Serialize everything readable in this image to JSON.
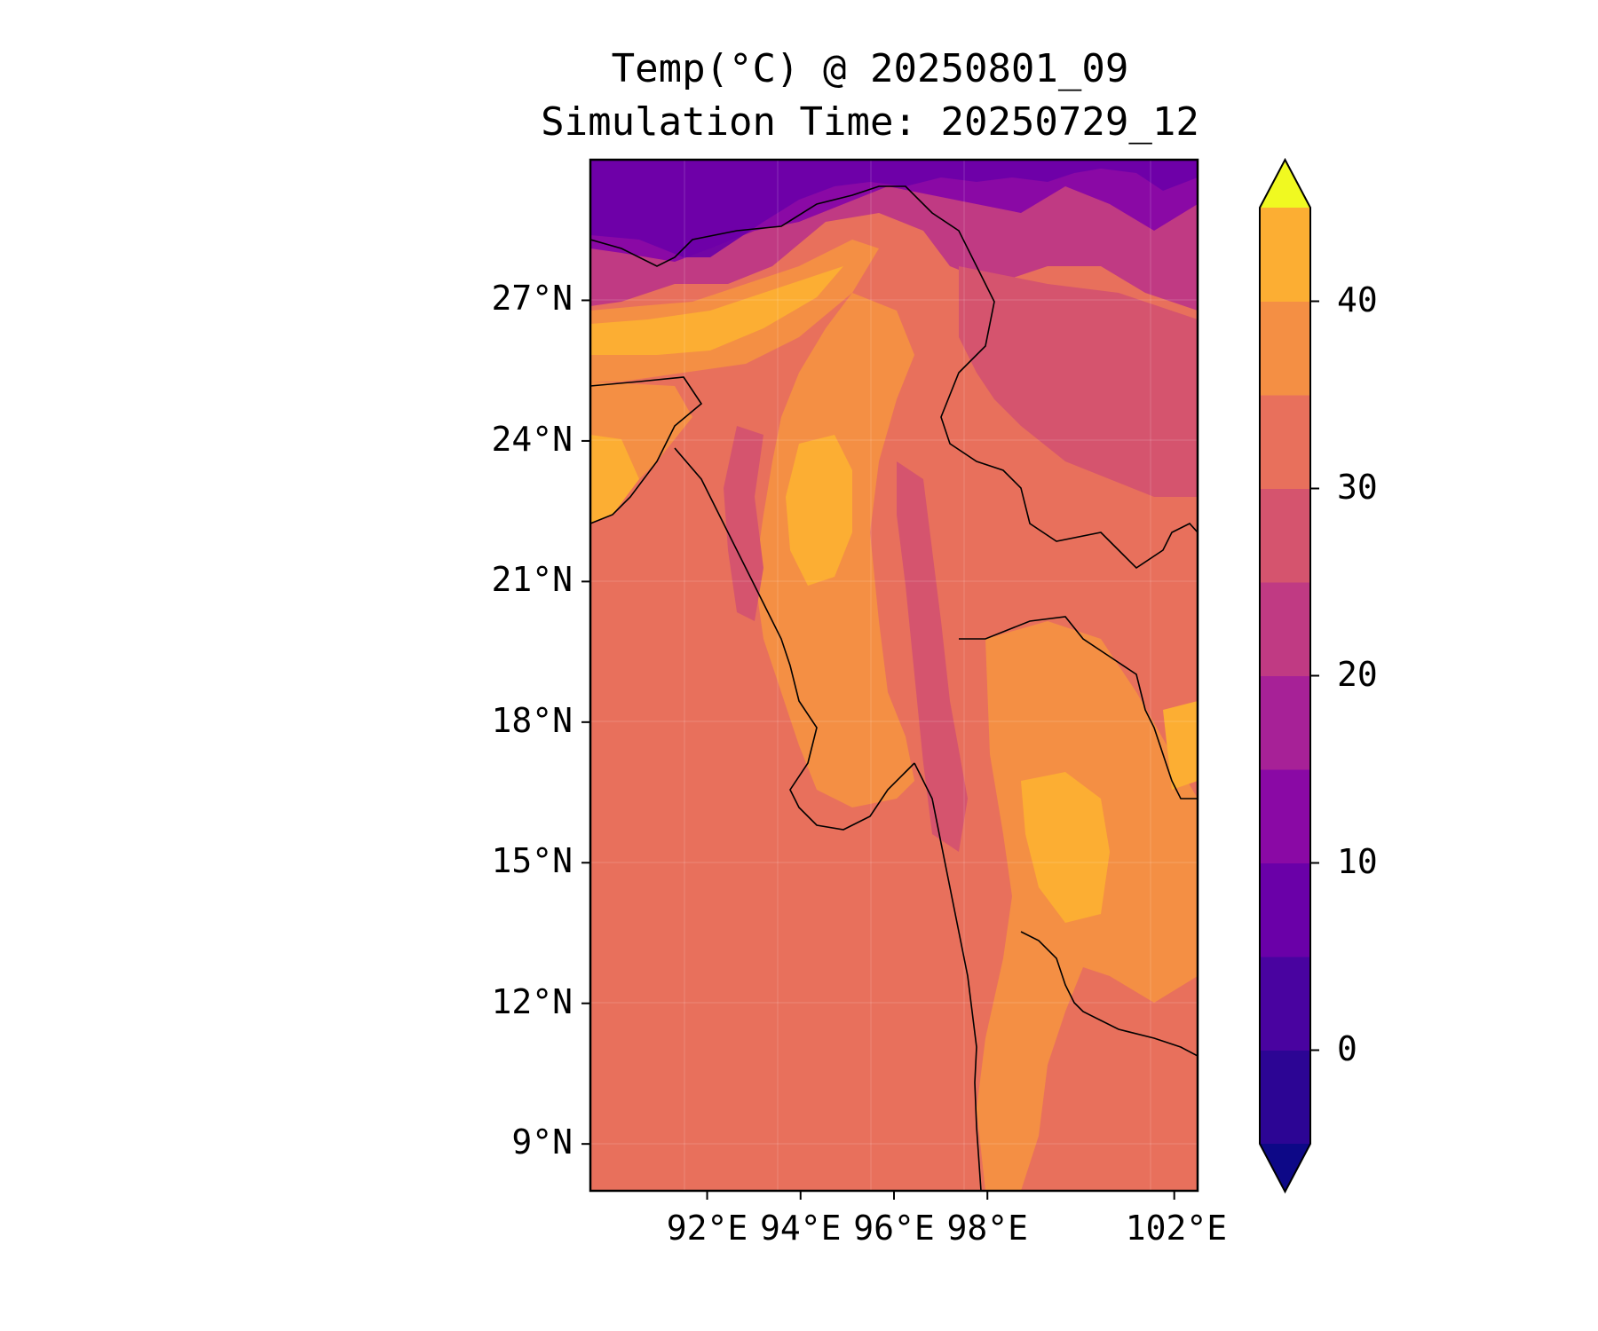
{
  "title": {
    "line1": "Temp(°C) @ 20250801_09",
    "line2": "Simulation Time: 20250729_12"
  },
  "map": {
    "lon_range": [
      89.5,
      102.5
    ],
    "lat_range": [
      8.0,
      30.0
    ],
    "lat_ticks": [
      {
        "value": 27,
        "label": "27°N"
      },
      {
        "value": 24,
        "label": "24°N"
      },
      {
        "value": 21,
        "label": "21°N"
      },
      {
        "value": 18,
        "label": "18°N"
      },
      {
        "value": 15,
        "label": "15°N"
      },
      {
        "value": 12,
        "label": "12°N"
      },
      {
        "value": 9,
        "label": "9°N"
      }
    ],
    "lon_ticks": [
      {
        "value": 92,
        "label": "92°E"
      },
      {
        "value": 94,
        "label": "94°E"
      },
      {
        "value": 96,
        "label": "96°E"
      },
      {
        "value": 98,
        "label": "98°E"
      },
      {
        "value": 102,
        "label": "102°E"
      }
    ],
    "grid": true,
    "projection": "PlateCarree",
    "field": "temperature"
  },
  "colorbar": {
    "min": -5,
    "max": 45,
    "extend": "both",
    "levels": [
      -5,
      0,
      5,
      10,
      15,
      20,
      25,
      30,
      35,
      40,
      45
    ],
    "colors": [
      "#0d0887",
      "#2c0594",
      "#4903a0",
      "#6a00a8",
      "#8a09a5",
      "#a72197",
      "#c03a83",
      "#d5546e",
      "#e8705c",
      "#f48f44",
      "#fcae33",
      "#f0f921"
    ],
    "ticks": [
      {
        "value": 40,
        "label": "40"
      },
      {
        "value": 30,
        "label": "30"
      },
      {
        "value": 20,
        "label": "20"
      },
      {
        "value": 10,
        "label": "10"
      },
      {
        "value": 0,
        "label": "0"
      }
    ]
  }
}
